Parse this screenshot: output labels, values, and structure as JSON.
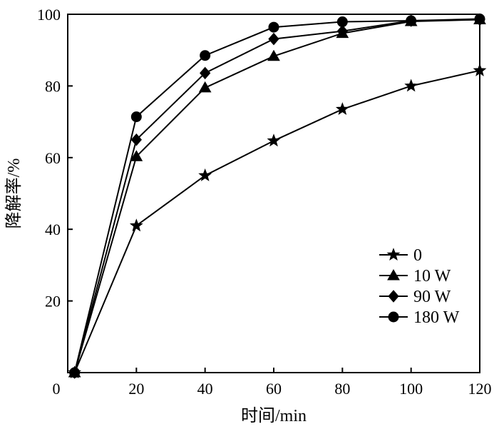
{
  "chart_data": {
    "type": "line",
    "xlabel": "时间/min",
    "ylabel": "降解率/%",
    "xlim": [
      0,
      120
    ],
    "ylim": [
      0,
      100
    ],
    "xticks": [
      0,
      20,
      40,
      60,
      80,
      100,
      120
    ],
    "yticks": [
      20,
      40,
      60,
      80,
      100
    ],
    "x_start_label": "0",
    "grid": false,
    "legend_position": "bottom-right",
    "series": [
      {
        "name": "0",
        "marker": "star",
        "x": [
          2,
          20,
          40,
          60,
          80,
          100,
          120
        ],
        "y": [
          0,
          41,
          55,
          64.7,
          73.5,
          80,
          84.3
        ]
      },
      {
        "name": "10 W",
        "marker": "triangle",
        "x": [
          2,
          20,
          40,
          60,
          80,
          100,
          120
        ],
        "y": [
          0,
          60.3,
          79.5,
          88.3,
          94.7,
          98,
          98.5
        ]
      },
      {
        "name": "90 W",
        "marker": "diamond",
        "x": [
          2,
          20,
          40,
          60,
          80,
          100,
          120
        ],
        "y": [
          0,
          65,
          83.6,
          93.1,
          95.3,
          98.2,
          98.5
        ]
      },
      {
        "name": "180 W",
        "marker": "circle",
        "x": [
          2,
          20,
          40,
          60,
          80,
          100,
          120
        ],
        "y": [
          0,
          71.4,
          88.5,
          96.4,
          97.9,
          98.2,
          98.7
        ]
      }
    ]
  }
}
